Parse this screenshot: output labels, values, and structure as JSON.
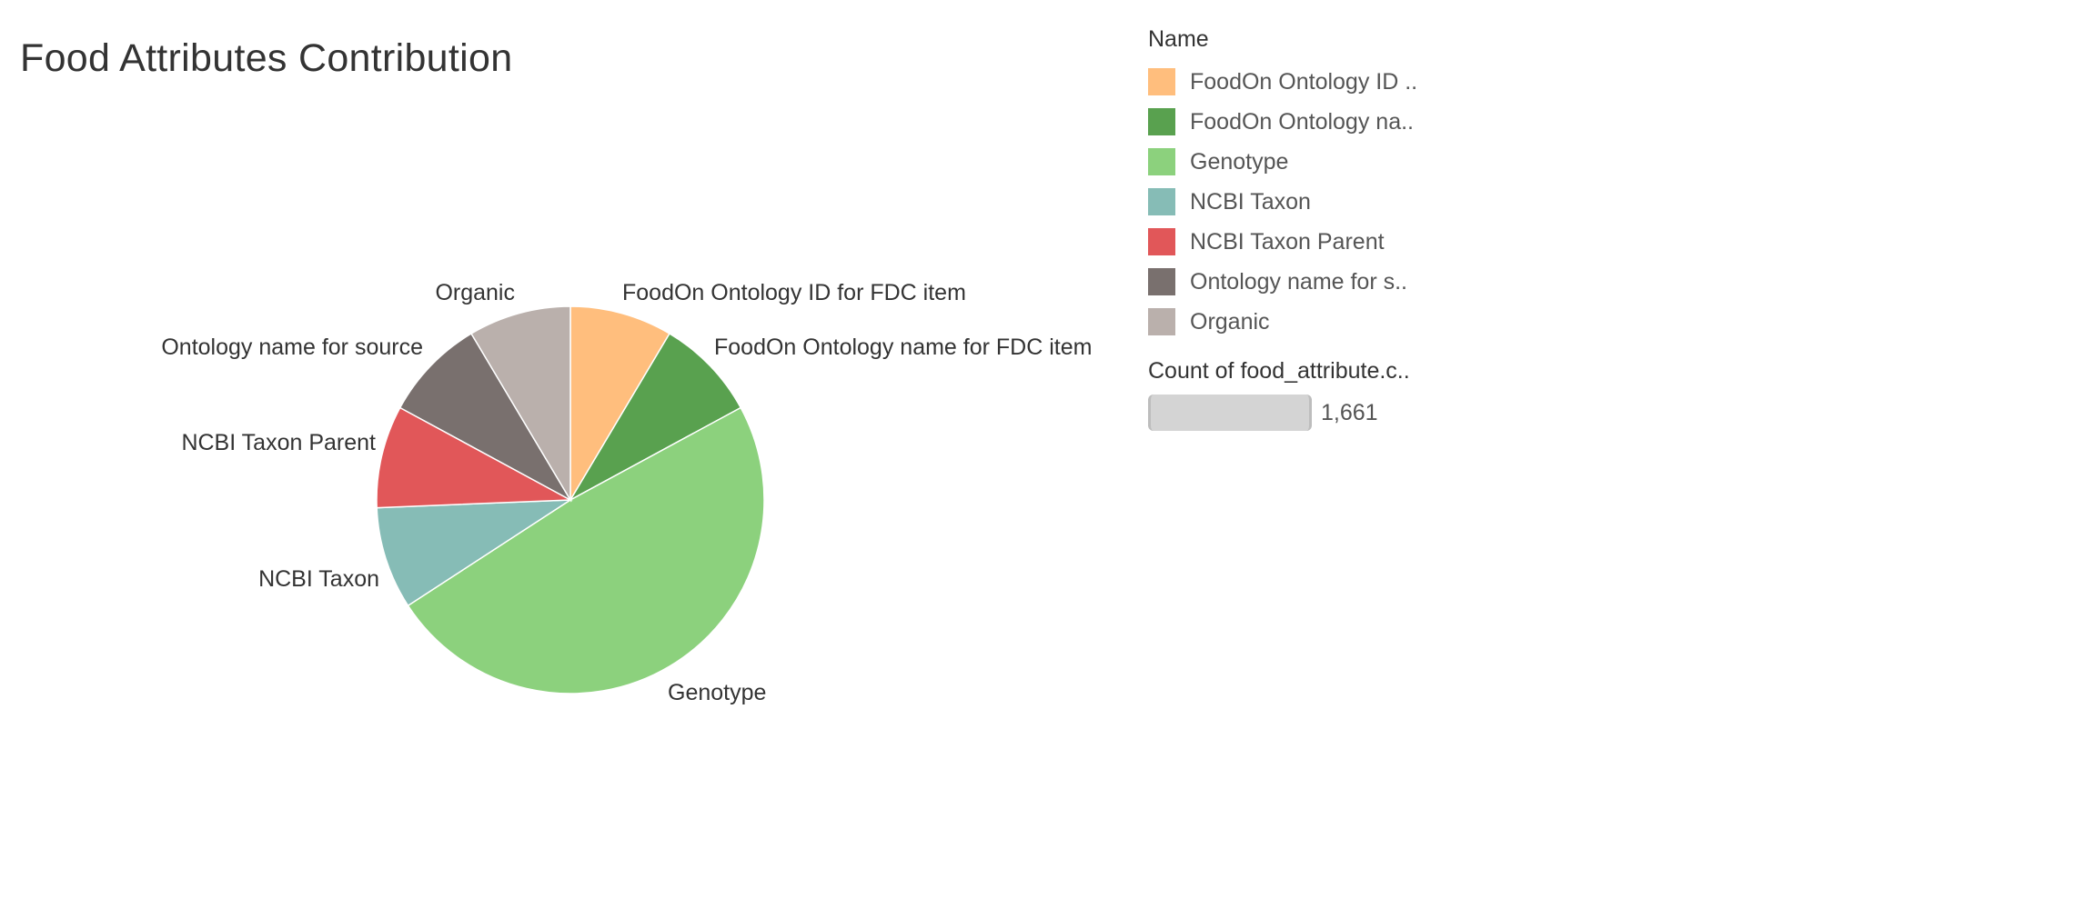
{
  "chart_data": {
    "type": "pie",
    "title": "Food Attributes Contribution",
    "slices": [
      {
        "label": "FoodOn Ontology ID for FDC item",
        "value": 1.0,
        "color": "#ffbe7d"
      },
      {
        "label": "FoodOn Ontology name for FDC item",
        "value": 1.0,
        "color": "#59a14f"
      },
      {
        "label": "Genotype",
        "value": 5.7,
        "color": "#8cd17d"
      },
      {
        "label": "NCBI Taxon",
        "value": 1.0,
        "color": "#86bcb6"
      },
      {
        "label": "NCBI Taxon Parent",
        "value": 1.0,
        "color": "#e15759"
      },
      {
        "label": "Ontology name for source",
        "value": 1.0,
        "color": "#79706e"
      },
      {
        "label": "Organic",
        "value": 1.0,
        "color": "#bab0ac"
      }
    ]
  },
  "legend": {
    "title": "Name",
    "items": [
      {
        "label": "FoodOn Ontology ID ..",
        "color": "#ffbe7d"
      },
      {
        "label": "FoodOn Ontology na..",
        "color": "#59a14f"
      },
      {
        "label": "Genotype",
        "color": "#8cd17d"
      },
      {
        "label": "NCBI Taxon",
        "color": "#86bcb6"
      },
      {
        "label": "NCBI Taxon Parent",
        "color": "#e15759"
      },
      {
        "label": "Ontology name for s..",
        "color": "#79706e"
      },
      {
        "label": "Organic",
        "color": "#bab0ac"
      }
    ]
  },
  "size_legend": {
    "title": "Count of food_attribute.c..",
    "value": "1,661"
  }
}
